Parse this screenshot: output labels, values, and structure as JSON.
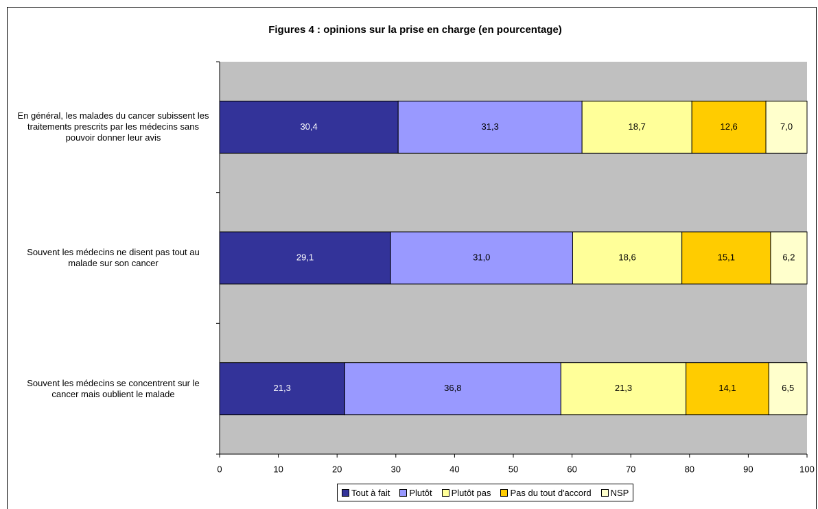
{
  "chart_data": {
    "type": "stacked_barh",
    "title": "Figures 4 : opinions sur la prise en charge (en pourcentage)",
    "categories": [
      "En général, les malades du cancer subissent les traitements prescrits par les médecins sans pouvoir donner leur avis",
      "Souvent les médecins ne disent pas tout au malade sur son cancer",
      "Souvent les médecins se concentrent sur le cancer mais oublient le malade"
    ],
    "series": [
      {
        "name": "Tout à fait",
        "color": "#333399",
        "values": [
          30.4,
          29.1,
          21.3
        ],
        "value_labels": [
          "30,4",
          "29,1",
          "21,3"
        ]
      },
      {
        "name": "Plutôt",
        "color": "#9999ff",
        "values": [
          31.3,
          31.0,
          36.8
        ],
        "value_labels": [
          "31,3",
          "31,0",
          "36,8"
        ]
      },
      {
        "name": "Plutôt pas",
        "color": "#ffff99",
        "values": [
          18.7,
          18.6,
          21.3
        ],
        "value_labels": [
          "18,7",
          "18,6",
          "21,3"
        ]
      },
      {
        "name": "Pas du tout d'accord",
        "color": "#ffcc00",
        "values": [
          12.6,
          15.1,
          14.1
        ],
        "value_labels": [
          "12,6",
          "15,1",
          "14,1"
        ]
      },
      {
        "name": "NSP",
        "color": "#ffffcc",
        "values": [
          7.0,
          6.2,
          6.5
        ],
        "value_labels": [
          "7,0",
          "6,2",
          "6,5"
        ]
      }
    ],
    "xlim": [
      0,
      100
    ],
    "xticks": [
      0,
      10,
      20,
      30,
      40,
      50,
      60,
      70,
      80,
      90,
      100
    ],
    "plot_background": "#c0c0c0",
    "legend": "bottom"
  }
}
